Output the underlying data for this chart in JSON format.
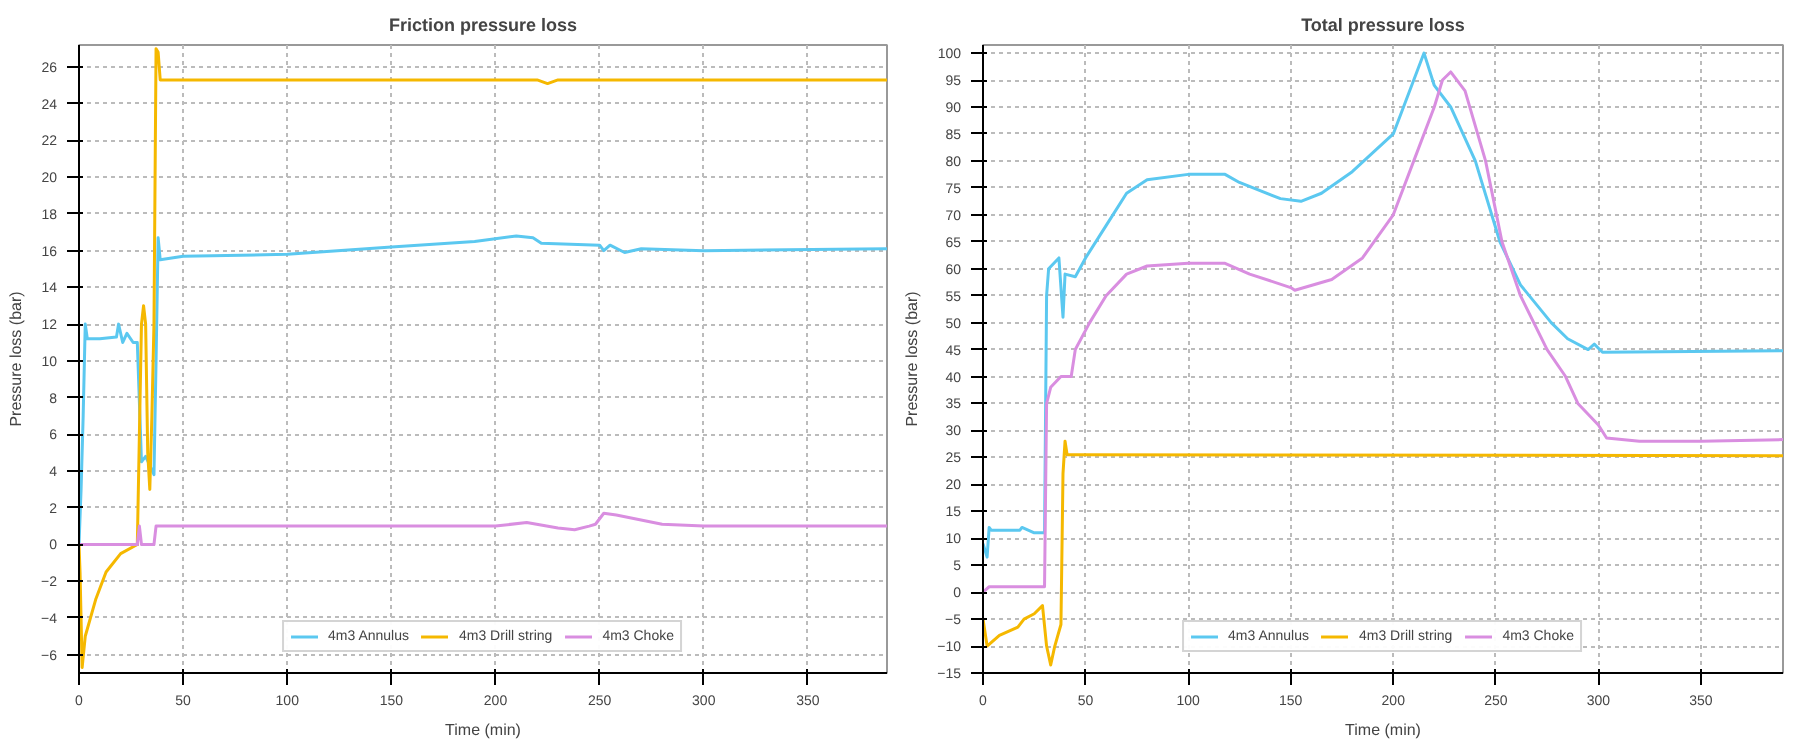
{
  "chart_data": [
    {
      "type": "line",
      "title": "Friction pressure loss",
      "xlabel": "Time (min)",
      "ylabel": "Pressure loss (bar)",
      "xlim": [
        0,
        388
      ],
      "ylim": [
        -7,
        27.2
      ],
      "xticks": [
        0,
        50,
        100,
        150,
        200,
        250,
        300,
        350
      ],
      "yticks": [
        -6,
        -4,
        -2,
        0,
        2,
        4,
        6,
        8,
        10,
        12,
        14,
        16,
        18,
        20,
        22,
        24,
        26
      ],
      "grid": true,
      "legend": "bottom",
      "marker": "none",
      "line_style": "solid",
      "series": [
        {
          "name": "4m3 Annulus",
          "color": "#5bc8f0",
          "x": [
            0,
            1,
            2,
            3,
            4,
            10,
            18,
            19,
            21,
            23,
            26,
            28,
            30,
            32,
            34,
            36,
            37,
            38,
            39,
            50,
            100,
            150,
            190,
            210,
            218,
            222,
            250,
            252,
            255,
            262,
            270,
            300,
            388
          ],
          "values": [
            0,
            3,
            7,
            12,
            11.2,
            11.2,
            11.3,
            12,
            11,
            11.5,
            11,
            11,
            4.5,
            4.8,
            4.3,
            3.8,
            10,
            16.7,
            15.5,
            15.7,
            15.8,
            16.2,
            16.5,
            16.8,
            16.7,
            16.4,
            16.3,
            16,
            16.3,
            15.9,
            16.1,
            16,
            16.1
          ]
        },
        {
          "name": "4m3 Drill string",
          "color": "#f5b800",
          "x": [
            0,
            0.5,
            1.5,
            3,
            8,
            13,
            20,
            28,
            29,
            30,
            31,
            32,
            33,
            34,
            35,
            36,
            37,
            38,
            39,
            100,
            220,
            225,
            230,
            388
          ],
          "values": [
            0,
            -1.5,
            -6.7,
            -5,
            -3,
            -1.5,
            -0.5,
            0,
            6,
            12,
            13,
            12,
            5,
            3,
            7,
            12,
            27,
            26.8,
            25.3,
            25.3,
            25.3,
            25.1,
            25.3,
            25.3
          ]
        },
        {
          "name": "4m3 Choke",
          "color": "#d98ee0",
          "x": [
            0,
            1,
            28,
            29,
            30,
            36,
            37,
            100,
            200,
            215,
            230,
            238,
            245,
            248,
            252,
            258,
            280,
            300,
            388
          ],
          "values": [
            0,
            0,
            0,
            1,
            0,
            0,
            1,
            1,
            1,
            1.2,
            0.9,
            0.8,
            1,
            1.1,
            1.7,
            1.6,
            1.1,
            1,
            1
          ]
        }
      ]
    },
    {
      "type": "line",
      "title": "Total pressure loss",
      "xlabel": "Time (min)",
      "ylabel": "Pressure loss (bar)",
      "xlim": [
        0,
        390
      ],
      "ylim": [
        -15,
        101.5
      ],
      "xticks": [
        0,
        50,
        100,
        150,
        200,
        250,
        300,
        350
      ],
      "yticks": [
        -15,
        -10,
        -5,
        0,
        5,
        10,
        15,
        20,
        25,
        30,
        35,
        40,
        45,
        50,
        55,
        60,
        65,
        70,
        75,
        80,
        85,
        90,
        95,
        100
      ],
      "grid": true,
      "legend": "bottom",
      "marker": "none",
      "line_style": "solid",
      "series": [
        {
          "name": "4m3 Annulus",
          "color": "#5bc8f0",
          "x": [
            0,
            2,
            3,
            4,
            18,
            19,
            25,
            30,
            31,
            32,
            37,
            39,
            40,
            45,
            50,
            60,
            70,
            80,
            100,
            118,
            125,
            145,
            155,
            165,
            180,
            200,
            210,
            215,
            220,
            228,
            240,
            252,
            262,
            277,
            285,
            295,
            298,
            302,
            390
          ],
          "values": [
            9,
            6.5,
            12,
            11.5,
            11.5,
            12,
            11,
            11,
            55,
            60,
            62,
            51,
            59,
            58.5,
            62,
            68,
            74,
            76.5,
            77.5,
            77.5,
            76,
            73,
            72.5,
            74,
            78,
            85,
            95,
            100,
            94,
            90,
            80,
            65,
            57,
            50,
            47,
            45,
            46,
            44.5,
            44.8
          ]
        },
        {
          "name": "4m3 Drill string",
          "color": "#f5b800",
          "x": [
            0,
            2,
            8,
            17,
            20,
            25,
            29,
            31,
            33,
            35,
            38,
            39,
            40,
            41,
            45,
            390
          ],
          "values": [
            -5,
            -10,
            -8,
            -6.5,
            -5,
            -4,
            -2.5,
            -10,
            -13.5,
            -10,
            -6,
            22,
            28,
            25.5,
            25.5,
            25.3
          ]
        },
        {
          "name": "4m3 Choke",
          "color": "#d98ee0",
          "x": [
            0,
            3,
            30,
            31,
            33,
            38,
            43,
            45,
            52,
            60,
            70,
            80,
            100,
            118,
            130,
            150,
            152,
            170,
            185,
            200,
            210,
            220,
            224,
            228,
            235,
            245,
            253,
            262,
            275,
            284,
            290,
            300,
            304,
            320,
            350,
            390
          ],
          "values": [
            0,
            1,
            1,
            35,
            38,
            40,
            40,
            45,
            50,
            55,
            59,
            60.5,
            61,
            61,
            59,
            56.5,
            56,
            58,
            62,
            70,
            80,
            90,
            95,
            96.5,
            93,
            80,
            65,
            55,
            45,
            40,
            35,
            31,
            28.6,
            28,
            28,
            28.3
          ]
        }
      ]
    }
  ]
}
